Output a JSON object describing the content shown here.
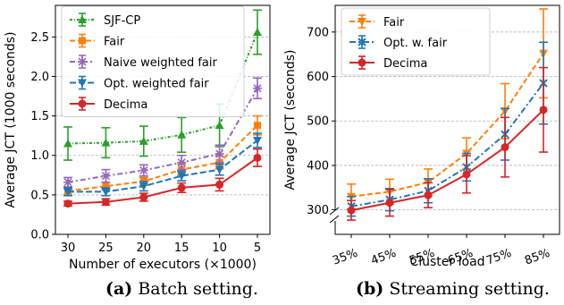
{
  "chart_data": [
    {
      "type": "line",
      "caption_tag": "(a)",
      "caption_text": "Batch setting.",
      "xlabel": "Number of executors (×1000)",
      "ylabel": "Average JCT (1000 seconds)",
      "categories": [
        "30",
        "25",
        "20",
        "15",
        "10",
        "5"
      ],
      "ylim": [
        0,
        2.9
      ],
      "yticks": [
        "0.0",
        "0.5",
        "1.0",
        "1.5",
        "2.0",
        "2.5"
      ],
      "grid": "horizontal dashed",
      "legend_position": "top-left",
      "series": [
        {
          "name": "SJF-CP",
          "color": "#2ca02c",
          "marker": "triangle-up",
          "dash": "3 2 1 2",
          "values": [
            1.15,
            1.16,
            1.18,
            1.26,
            1.38,
            2.56
          ],
          "err": [
            0.21,
            0.19,
            0.19,
            0.22,
            0.27,
            0.28
          ]
        },
        {
          "name": "Fair",
          "color": "#ff7f0e",
          "marker": "square",
          "dash": "6 3",
          "values": [
            0.55,
            0.61,
            0.67,
            0.82,
            0.91,
            1.38
          ],
          "err": [
            0.05,
            0.05,
            0.05,
            0.07,
            0.08,
            0.12
          ]
        },
        {
          "name": "Naive weighted fair",
          "color": "#9467bd",
          "marker": "star",
          "dash": "6 3 2 3",
          "values": [
            0.66,
            0.74,
            0.81,
            0.91,
            1.02,
            1.85
          ],
          "err": [
            0.06,
            0.08,
            0.07,
            0.09,
            0.11,
            0.13
          ]
        },
        {
          "name": "Opt. weighted fair",
          "color": "#1f77b4",
          "marker": "triangle-down",
          "dash": "7 3",
          "values": [
            0.54,
            0.54,
            0.61,
            0.74,
            0.82,
            1.19
          ],
          "err": [
            0.05,
            0.05,
            0.06,
            0.06,
            0.07,
            0.09
          ]
        },
        {
          "name": "Decima",
          "color": "#d62728",
          "marker": "circle",
          "dash": "",
          "values": [
            0.39,
            0.41,
            0.47,
            0.59,
            0.63,
            0.97
          ],
          "err": [
            0.03,
            0.04,
            0.05,
            0.06,
            0.08,
            0.11
          ]
        }
      ]
    },
    {
      "type": "line",
      "caption_tag": "(b)",
      "caption_text": "Streaming setting.",
      "xlabel": "Cluster load",
      "ylabel": "Average JCT (seconds)",
      "categories": [
        "35%",
        "45%",
        "55%",
        "65%",
        "75%",
        "85%"
      ],
      "ylim": [
        245,
        760
      ],
      "yticks": [
        "300",
        "400",
        "500",
        "600",
        "700"
      ],
      "axis_break": true,
      "grid": "horizontal dashed",
      "legend_position": "top-left",
      "series": [
        {
          "name": "Fair",
          "color": "#ff7f0e",
          "marker": "triangle-down",
          "dash": "6 3",
          "values": [
            330,
            341,
            362,
            427,
            522,
            652
          ],
          "err": [
            28,
            28,
            30,
            35,
            62,
            100
          ]
        },
        {
          "name": "Opt. w. fair",
          "color": "#1f77b4",
          "marker": "x",
          "dash": "7 3 2 3",
          "values": [
            308,
            323,
            343,
            396,
            470,
            585
          ],
          "err": [
            22,
            25,
            27,
            31,
            58,
            92
          ]
        },
        {
          "name": "Decima",
          "color": "#d62728",
          "marker": "circle",
          "dash": "",
          "values": [
            299,
            316,
            333,
            380,
            441,
            525
          ],
          "err": [
            22,
            30,
            28,
            42,
            67,
            95
          ]
        }
      ]
    }
  ]
}
